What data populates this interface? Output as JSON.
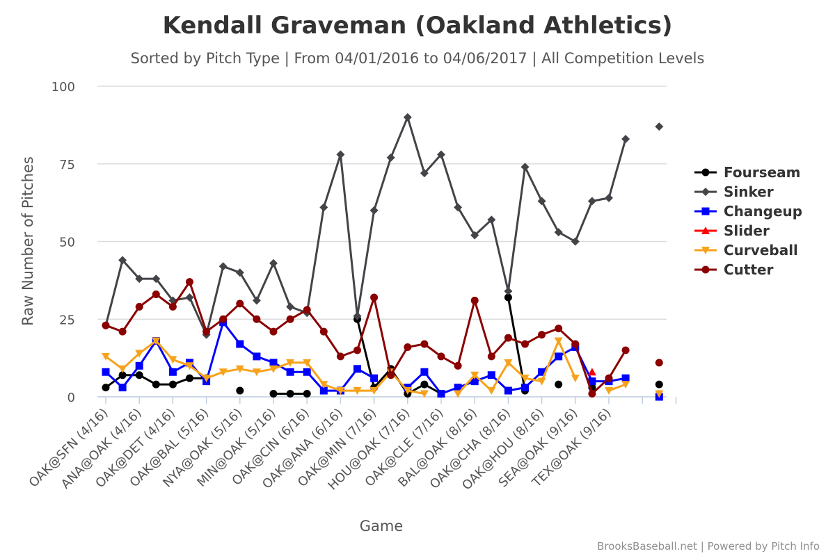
{
  "chart_data": {
    "type": "line",
    "title": "Kendall Graveman (Oakland Athletics)",
    "subtitle": "Sorted by Pitch Type | From 04/01/2016 to 04/06/2017 | All Competition Levels",
    "xlabel": "Game",
    "ylabel": "Raw Number of Pitches",
    "ylim": [
      0,
      100
    ],
    "yticks": [
      0,
      25,
      50,
      75,
      100
    ],
    "grid": true,
    "legend_position": "right",
    "x_count": 34,
    "xtick_labels": [
      {
        "index": 0,
        "label": "OAK@SFN (4/16)"
      },
      {
        "index": 2,
        "label": "ANA@OAK (4/16)"
      },
      {
        "index": 4,
        "label": "OAK@DET (4/16)"
      },
      {
        "index": 6,
        "label": "OAK@BAL (5/16)"
      },
      {
        "index": 8,
        "label": "NYA@OAK (5/16)"
      },
      {
        "index": 10,
        "label": "MIN@OAK (5/16)"
      },
      {
        "index": 12,
        "label": "OAK@CIN (6/16)"
      },
      {
        "index": 14,
        "label": "OAK@ANA (6/16)"
      },
      {
        "index": 16,
        "label": "OAK@MIN (7/16)"
      },
      {
        "index": 18,
        "label": "HOU@OAK (7/16)"
      },
      {
        "index": 20,
        "label": "OAK@CLE (7/16)"
      },
      {
        "index": 22,
        "label": "BAL@OAK (8/16)"
      },
      {
        "index": 24,
        "label": "OAK@CHA (8/16)"
      },
      {
        "index": 26,
        "label": "OAK@HOU (8/16)"
      },
      {
        "index": 28,
        "label": "SEA@OAK (9/16)"
      },
      {
        "index": 30,
        "label": "TEX@OAK (9/16)"
      }
    ],
    "series": [
      {
        "name": "Fourseam",
        "color": "#000000",
        "marker": "circle",
        "values": [
          3,
          7,
          7,
          4,
          4,
          6,
          6,
          null,
          2,
          null,
          1,
          1,
          1,
          null,
          null,
          25,
          3,
          9,
          1,
          4,
          1,
          null,
          5,
          null,
          32,
          2,
          null,
          4,
          null,
          3,
          null,
          null,
          null,
          4
        ]
      },
      {
        "name": "Sinker",
        "color": "#434348",
        "marker": "diamond",
        "values": [
          23,
          44,
          38,
          38,
          31,
          32,
          20,
          42,
          40,
          31,
          43,
          29,
          27,
          61,
          78,
          26,
          60,
          77,
          90,
          72,
          78,
          61,
          52,
          57,
          34,
          74,
          63,
          53,
          50,
          63,
          64,
          83,
          null,
          87
        ]
      },
      {
        "name": "Changeup",
        "color": "#0000ff",
        "marker": "square",
        "values": [
          8,
          3,
          10,
          18,
          8,
          11,
          5,
          24,
          17,
          13,
          11,
          8,
          8,
          2,
          2,
          9,
          6,
          null,
          3,
          8,
          1,
          3,
          5,
          7,
          2,
          3,
          8,
          13,
          16,
          5,
          5,
          6,
          null,
          0
        ]
      },
      {
        "name": "Slider",
        "color": "#ff0000",
        "marker": "triangle",
        "values": [
          null,
          null,
          null,
          null,
          null,
          null,
          null,
          null,
          null,
          null,
          null,
          null,
          null,
          null,
          null,
          null,
          null,
          null,
          null,
          null,
          null,
          null,
          null,
          null,
          null,
          null,
          null,
          null,
          null,
          8,
          null,
          null,
          null,
          null
        ]
      },
      {
        "name": "Curveball",
        "color": "#f7a21b",
        "marker": "triangle-down",
        "values": [
          13,
          9,
          14,
          18,
          12,
          10,
          6,
          8,
          9,
          8,
          9,
          11,
          11,
          4,
          2,
          2,
          2,
          8,
          2,
          1,
          null,
          1,
          7,
          2,
          11,
          6,
          5,
          18,
          6,
          null,
          2,
          4,
          null,
          1
        ]
      },
      {
        "name": "Cutter",
        "color": "#8b0000",
        "marker": "circle",
        "values": [
          23,
          21,
          29,
          33,
          29,
          37,
          21,
          25,
          30,
          25,
          21,
          25,
          28,
          21,
          13,
          15,
          32,
          7,
          16,
          17,
          13,
          10,
          31,
          13,
          19,
          17,
          20,
          22,
          17,
          1,
          6,
          15,
          null,
          11
        ]
      }
    ],
    "credits": "BrooksBaseball.net | Powered by Pitch Info"
  }
}
